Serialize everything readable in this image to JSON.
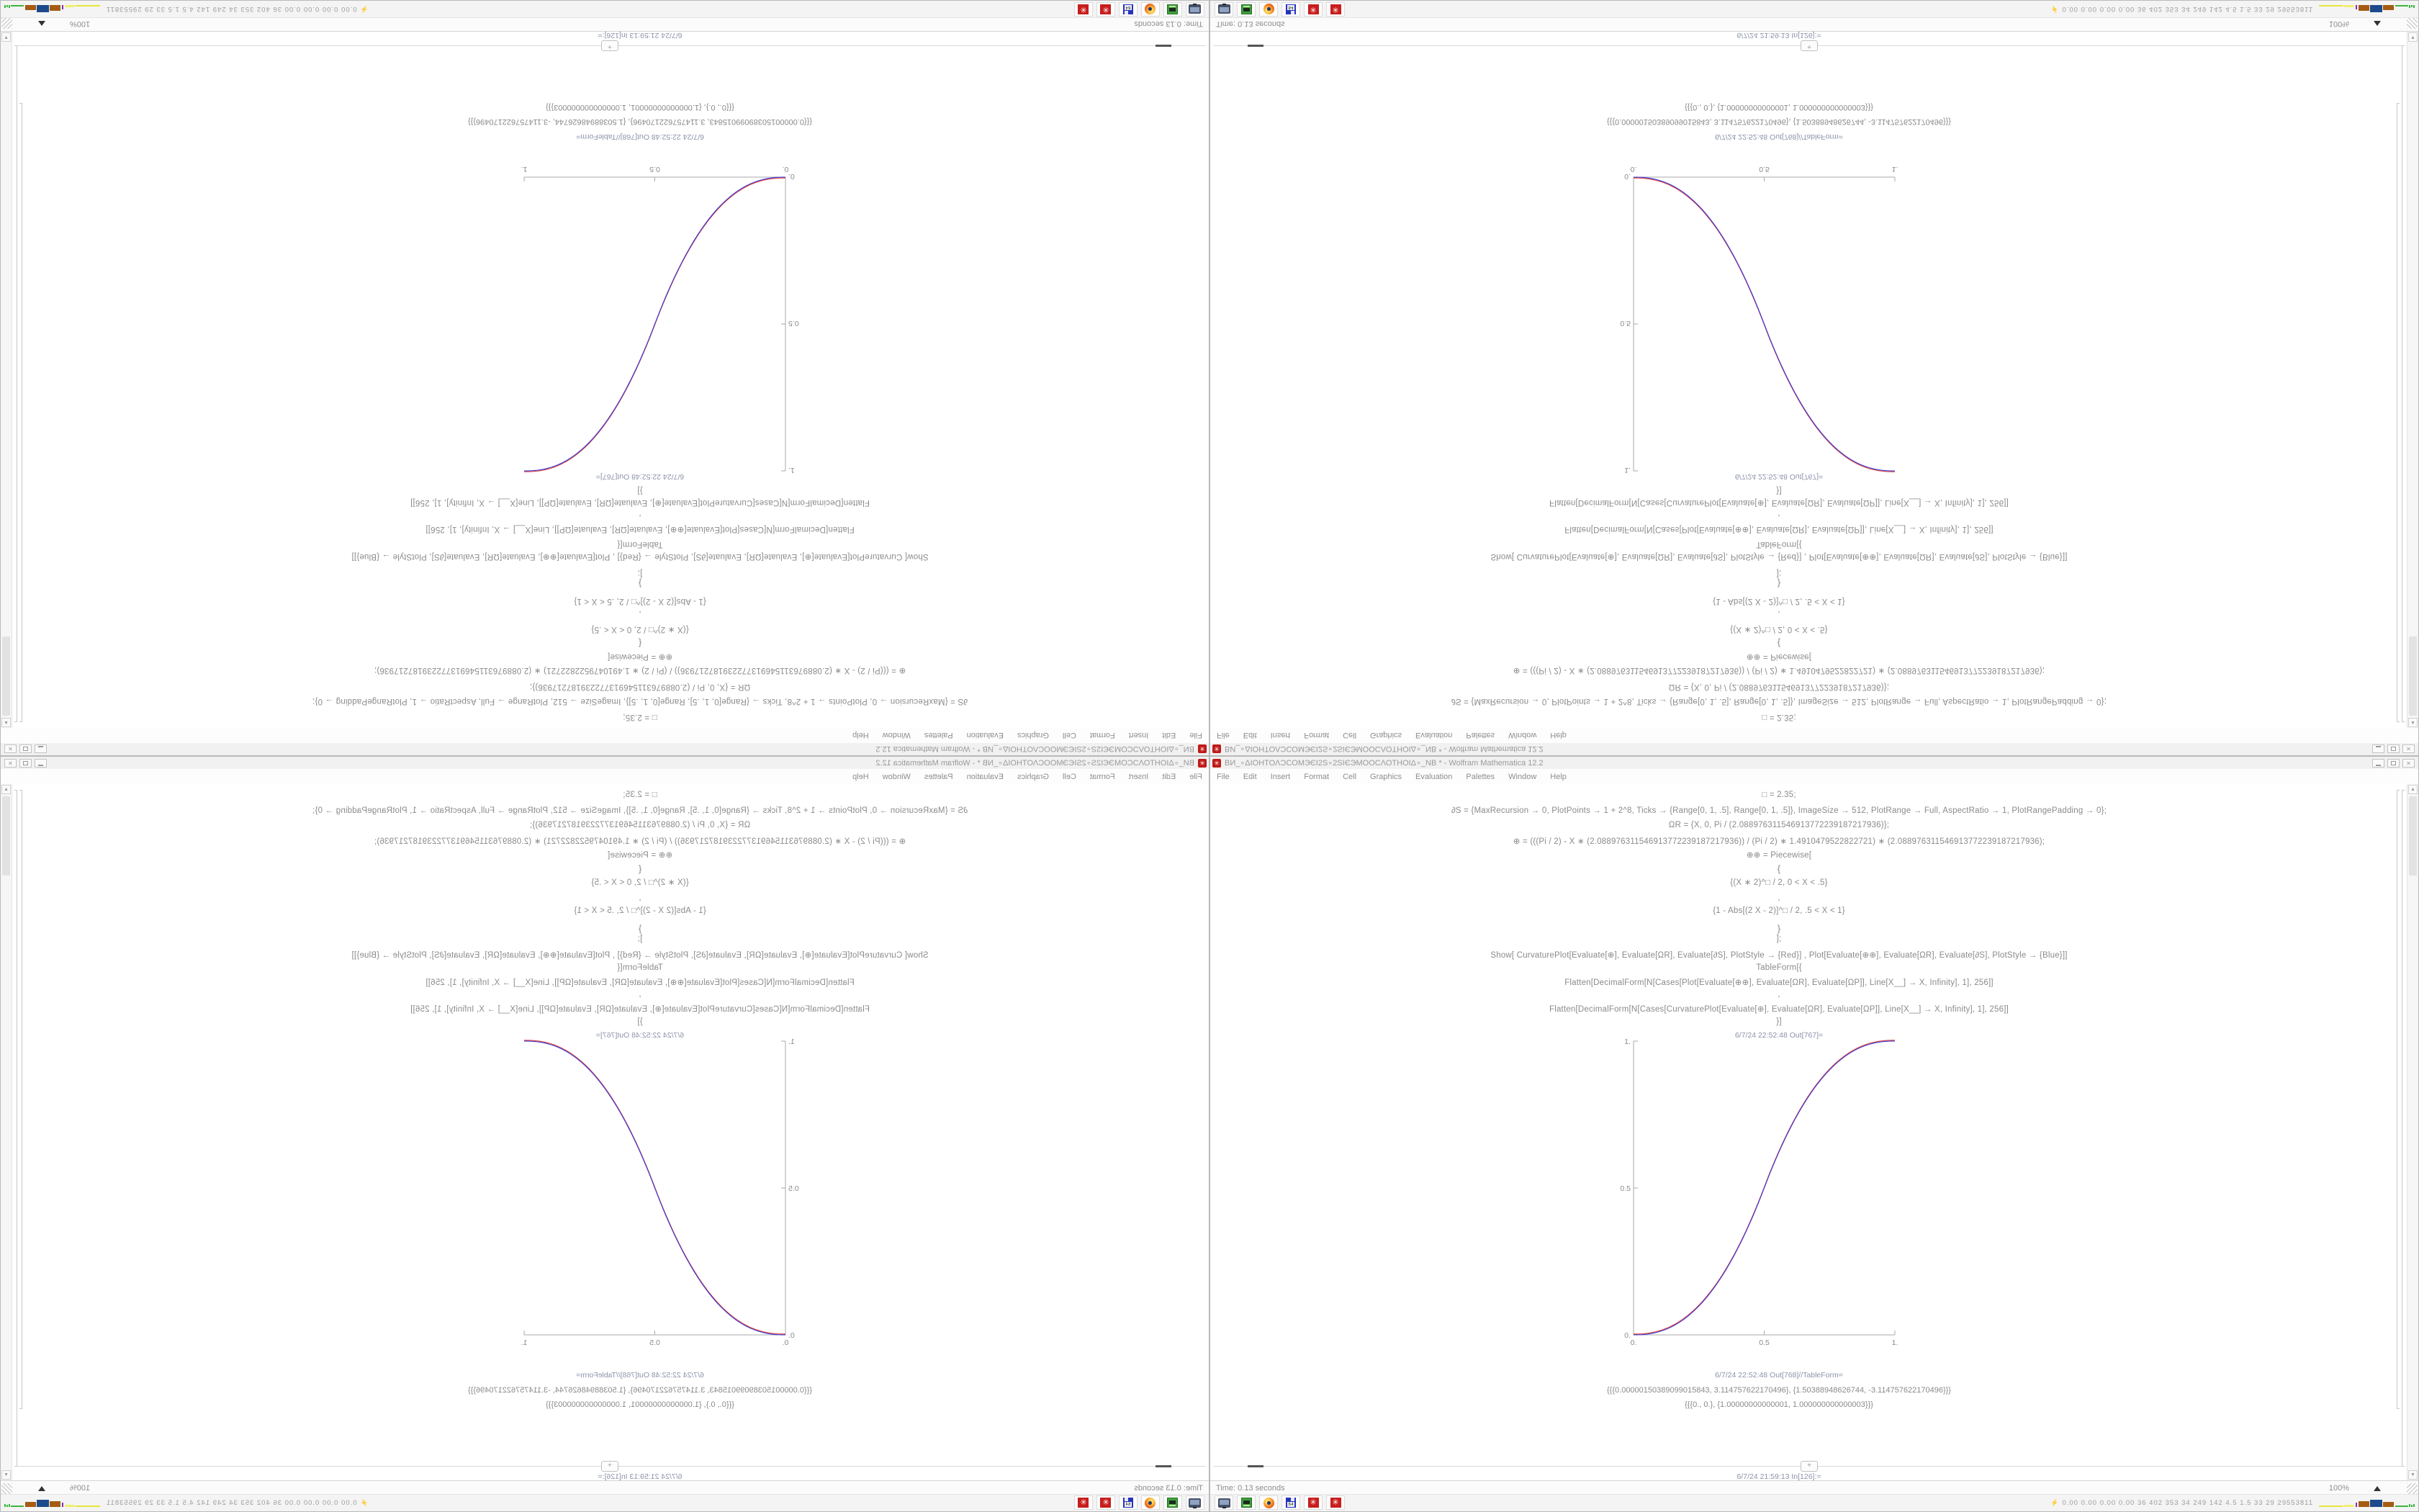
{
  "desktop": {
    "description": "Four copies of one 1680x1050 Wolfram Mathematica desktop screenshot tiled 2x2",
    "quadrants": [
      {
        "id": "top-left",
        "transform": "rotated-180"
      },
      {
        "id": "top-right",
        "transform": "flipped-vertical"
      },
      {
        "id": "bottom-left",
        "transform": "flipped-horizontal"
      },
      {
        "id": "bottom-right",
        "transform": "original"
      }
    ]
  },
  "window": {
    "title": "ВИ_∘ΔΙΟΗΤΟΛϽCOMЭЄΙ2Ѕ∘2ЅΙЄЭMOOϹΛΟΤΗΟΙΔ∘_NB * - Wolfram Mathematica 12.2",
    "menu": [
      "File",
      "Edit",
      "Insert",
      "Format",
      "Cell",
      "Graphics",
      "Evaluation",
      "Palettes",
      "Window",
      "Help"
    ],
    "controls": {
      "minimize": "",
      "maximize": "",
      "close": "✕"
    }
  },
  "notebook": {
    "code_lines": [
      "□ = 2.35;",
      "∂S = {MaxRecursion → 0, PlotPoints → 1 + 2^8, Ticks → {Range[0, 1, .5], Range[0, 1, .5]}, ImageSize → 512, PlotRange → Full, AspectRatio → 1, PlotRangePadding → 0};",
      "ΩR = {X, 0, Pi / (2.088976311546913772239187217936)};",
      "⊕ = (((Pi / 2) - X ∗ (2.088976311546913772239187217936)) / (Pi / 2) ∗ 1.4910479522822721) ∗ (2.088976311546913772239187217936);",
      "⊕⊕ = Piecewise[",
      "{",
      "{(X ∗ 2)^□ / 2,  0 < X < .5}",
      ",",
      "{1 - Abs[(2 X - 2)]^□ / 2,  .5 < X < 1}",
      "}",
      "];",
      "Show[  CurvaturePlot[Evaluate[⊕], Evaluate[ΩR], Evaluate[∂S], PlotStyle → {Red}]  ,  Plot[Evaluate[⊕⊕], Evaluate[ΩR], Evaluate[∂S], PlotStyle → {Blue}]]",
      "TableForm[{",
      "Flatten[DecimalForm[N[Cases[Plot[Evaluate[⊕⊕], Evaluate[ΩR], Evaluate[ΩP]], Line[X__] → X, Infinity], 1], 256]]",
      ",",
      "Flatten[DecimalForm[N[Cases[CurvaturePlot[Evaluate[⊕], Evaluate[ΩR], Evaluate[ΩP]], Line[X__] → X, Infinity], 1], 256]]",
      "}]"
    ],
    "out_label_1": "6/7/24 22:52:48 Out[767]=",
    "out_label_2": "6/7/24 22:52:48 Out[768]//TableForm=",
    "table_row_1": "{{{0.00000150389099015843, 3.114757622170496}, {1.50388948626744, -3.114757622170496}}}",
    "table_row_2": "{{{0., 0.}, {1.00000000000001, 1.000000000000003}}}",
    "insert_plus": "+",
    "next_in_label": "6/7/24 21:59:13 In[126]:="
  },
  "chart_data": {
    "type": "line",
    "title": "",
    "xlabel": "",
    "ylabel": "",
    "x_range": [
      0,
      1
    ],
    "y_range": [
      0,
      1
    ],
    "x_ticks": [
      "0.",
      "0.5",
      "1."
    ],
    "y_ticks": [
      "1.",
      "0.5",
      "0."
    ],
    "grid": false,
    "legend": "none",
    "exponent": 2.35,
    "series": [
      {
        "name": "CurvaturePlot ⊕ (Red)",
        "color": "#d93a3a",
        "function": "y = (2x)^2.35/2 for 0<x<0.5 ; y = 1-(2-2x)^2.35/2 for 0.5<x<1 (coincides with blue)"
      },
      {
        "name": "Plot ⊕⊕ Piecewise (Blue)",
        "color": "#3a3ad9",
        "function": "y = (2x)^2.35/2 for 0<x<0.5 ; y = 1-|2x-2|^2.35/2 for 0.5<x<1"
      }
    ],
    "key_points": [
      [
        0,
        0
      ],
      [
        0.25,
        0.098
      ],
      [
        0.5,
        0.5
      ],
      [
        0.75,
        0.902
      ],
      [
        1,
        1
      ]
    ]
  },
  "statusbar": {
    "time": "Time: 0.13 seconds",
    "zoom": "100%"
  },
  "taskbar": {
    "icons": [
      "screenshot-tool",
      "green-package",
      "firefox",
      "floppy-64",
      "mathematica-spikey",
      "mathematica-spikey"
    ],
    "tray_glyph": "⚡",
    "tray_text": "0.00 0.00 0.00 0.00  36  402 353  34  249 142  4.5  1.5  33  29  29553811"
  }
}
